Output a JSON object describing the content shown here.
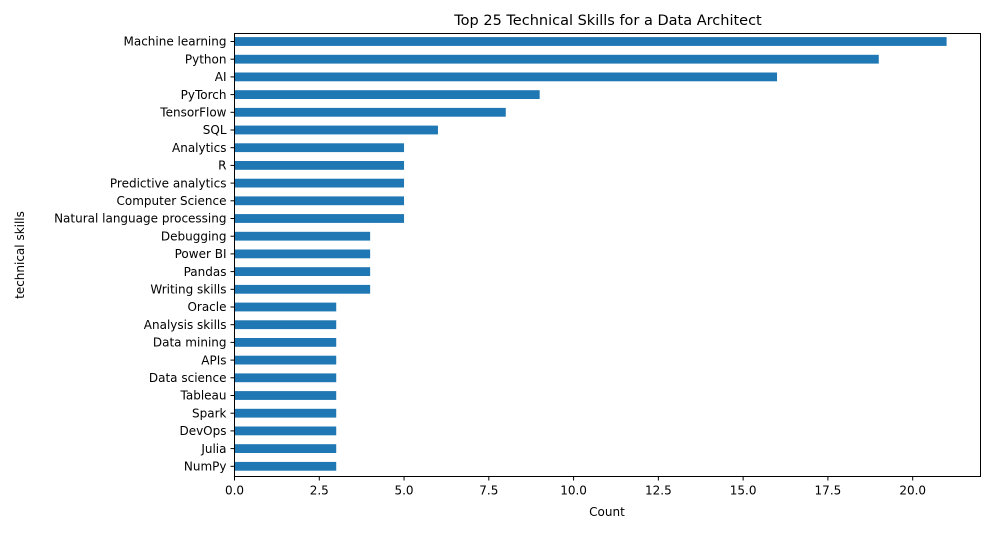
{
  "chart_data": {
    "type": "bar",
    "orientation": "horizontal",
    "title": "Top 25 Technical Skills for a Data Architect",
    "xlabel": "Count",
    "ylabel": "technical skills",
    "xlim": [
      0,
      22
    ],
    "xticks": [
      0.0,
      2.5,
      5.0,
      7.5,
      10.0,
      12.5,
      15.0,
      17.5,
      20.0
    ],
    "xtick_labels": [
      "0.0",
      "2.5",
      "5.0",
      "7.5",
      "10.0",
      "12.5",
      "15.0",
      "17.5",
      "20.0"
    ],
    "grid": false,
    "bar_color": "#1f77b4",
    "categories": [
      "Machine learning",
      "Python",
      "AI",
      "PyTorch",
      "TensorFlow",
      "SQL",
      "Analytics",
      "R",
      "Predictive analytics",
      "Computer Science",
      "Natural language processing",
      "Debugging",
      "Power BI",
      "Pandas",
      "Writing skills",
      "Oracle",
      "Analysis skills",
      "Data mining",
      "APIs",
      "Data science",
      "Tableau",
      "Spark",
      "DevOps",
      "Julia",
      "NumPy"
    ],
    "values": [
      21,
      19,
      16,
      9,
      8,
      6,
      5,
      5,
      5,
      5,
      5,
      4,
      4,
      4,
      4,
      3,
      3,
      3,
      3,
      3,
      3,
      3,
      3,
      3,
      3
    ]
  }
}
